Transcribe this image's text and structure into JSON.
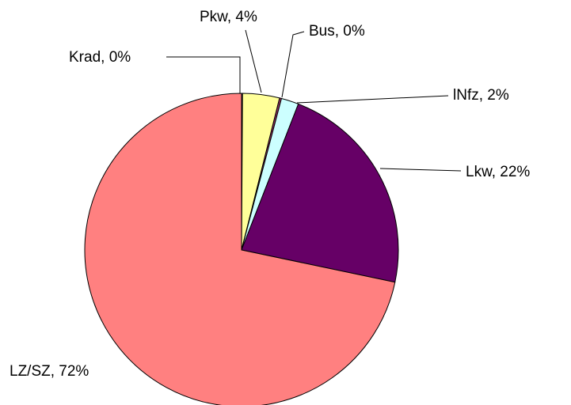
{
  "chart_data": {
    "type": "pie",
    "values": [
      0.1,
      3.8,
      0.2,
      1.8,
      22.4,
      71.7
    ],
    "value_labels": [
      "Krad, 0%",
      "Pkw, 4%",
      "Bus, 0%",
      "lNfz, 2%",
      "Lkw, 22%",
      "LZ/SZ, 72%"
    ],
    "colors": [
      "#9999ff",
      "#ffff99",
      "#993366",
      "#ccffff",
      "#660066",
      "#ff8080"
    ]
  }
}
